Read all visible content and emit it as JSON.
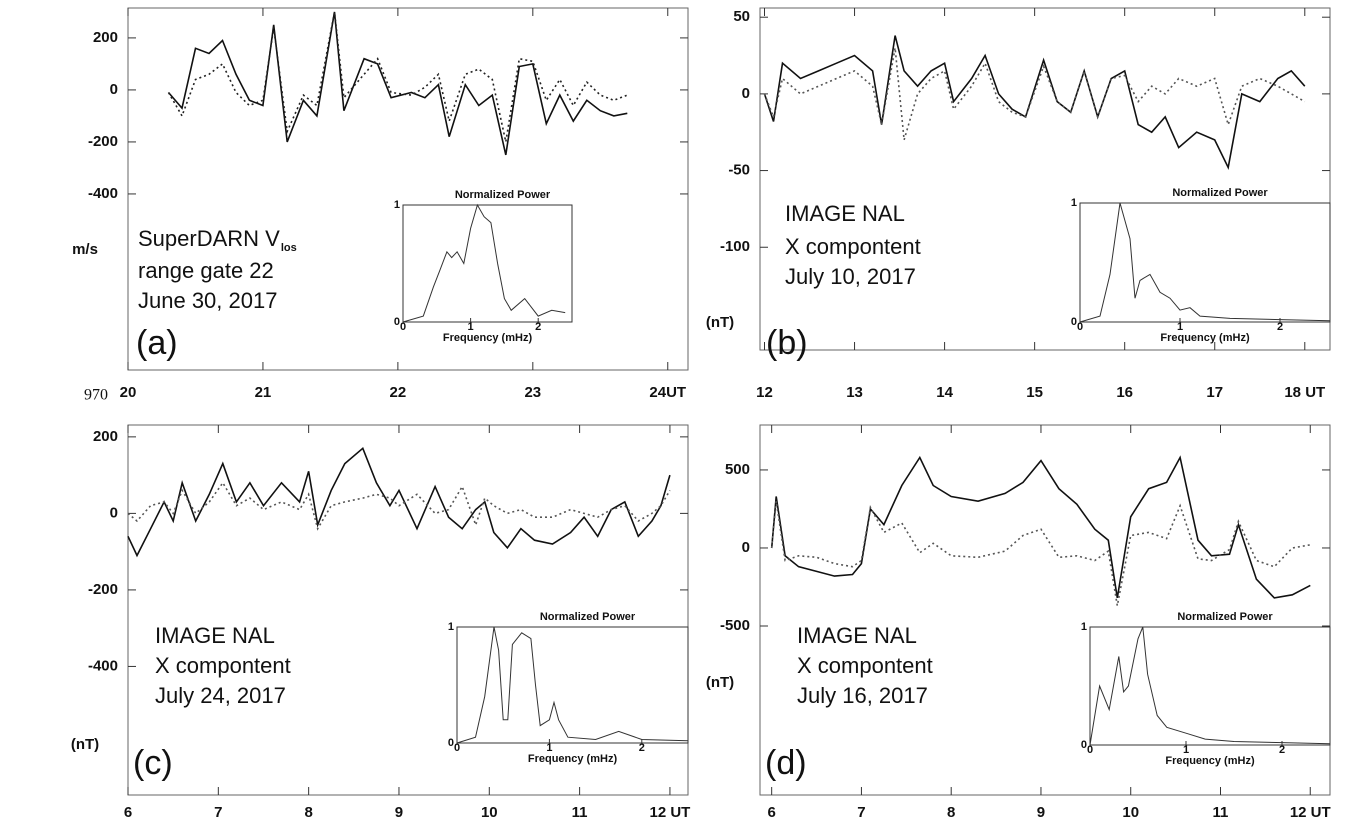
{
  "page_number": "970",
  "chart_data": [
    {
      "type": "line",
      "annotation_lines": [
        "SuperDARN V",
        "range gate 22",
        "June 30, 2017"
      ],
      "annotation_subscript": "los",
      "y_unit": "m/s",
      "panel_label": "(a)",
      "xlim": [
        20,
        24.15
      ],
      "xticks": [
        20,
        21,
        22,
        23,
        {
          "value": 24,
          "label": "24UT"
        }
      ],
      "ylim": [
        -1077,
        315
      ],
      "yticks": [
        200,
        0,
        -200,
        -400
      ],
      "x": [
        20.3,
        20.4,
        20.5,
        20.6,
        20.7,
        20.8,
        20.9,
        21.0,
        21.08,
        21.18,
        21.3,
        21.4,
        21.53,
        21.6,
        21.75,
        21.85,
        21.95,
        22.1,
        22.2,
        22.3,
        22.38,
        22.5,
        22.6,
        22.7,
        22.8,
        22.9,
        23.0,
        23.1,
        23.2,
        23.3,
        23.4,
        23.5,
        23.6,
        23.7
      ],
      "series": [
        {
          "color": "#111111",
          "dash": "solid",
          "values": [
            -10,
            -70,
            160,
            140,
            190,
            60,
            -40,
            -60,
            250,
            -200,
            -40,
            -100,
            300,
            -80,
            120,
            100,
            -30,
            -10,
            -30,
            20,
            -180,
            20,
            -60,
            -20,
            -250,
            90,
            100,
            -130,
            -20,
            -120,
            -40,
            -80,
            -100,
            -90
          ]
        },
        {
          "color": "#222222",
          "dash": "dotted",
          "values": [
            -10,
            -100,
            40,
            60,
            100,
            -10,
            -60,
            -40,
            240,
            -160,
            -20,
            -60,
            300,
            -30,
            60,
            120,
            -10,
            -20,
            10,
            60,
            -120,
            60,
            80,
            40,
            -200,
            120,
            110,
            -40,
            40,
            -60,
            30,
            -20,
            -40,
            -20
          ]
        }
      ],
      "inset": {
        "type": "line",
        "title": "Normalized Power",
        "xlabel": "Frequency (mHz)",
        "xlim": [
          0,
          2.5
        ],
        "xticks": [
          0,
          1,
          2
        ],
        "ylim": [
          0,
          1
        ],
        "yticks": [
          0,
          1
        ],
        "color": "#333333",
        "x": [
          0,
          0.3,
          0.45,
          0.55,
          0.65,
          0.72,
          0.8,
          0.9,
          1.0,
          1.1,
          1.2,
          1.3,
          1.4,
          1.5,
          1.6,
          1.8,
          2.0,
          2.2,
          2.4
        ],
        "values": [
          0,
          0.05,
          0.3,
          0.45,
          0.6,
          0.55,
          0.6,
          0.5,
          0.8,
          1.0,
          0.9,
          0.85,
          0.5,
          0.2,
          0.1,
          0.2,
          0.05,
          0.1,
          0.08
        ]
      }
    },
    {
      "type": "line",
      "annotation_lines": [
        "IMAGE NAL",
        "X compontent",
        "July 10, 2017"
      ],
      "y_unit": "(nT)",
      "panel_label": "(b)",
      "xlim": [
        11.95,
        18.28
      ],
      "xticks": [
        12,
        13,
        14,
        15,
        16,
        17,
        {
          "value": 18,
          "label": "18 UT"
        }
      ],
      "ylim": [
        -167,
        56
      ],
      "yticks": [
        50,
        0,
        -50,
        -100
      ],
      "x": [
        12.0,
        12.1,
        12.2,
        12.4,
        12.6,
        12.8,
        13.0,
        13.2,
        13.3,
        13.45,
        13.55,
        13.7,
        13.85,
        14.0,
        14.1,
        14.3,
        14.45,
        14.6,
        14.75,
        14.9,
        15.1,
        15.25,
        15.4,
        15.55,
        15.7,
        15.85,
        16.0,
        16.15,
        16.3,
        16.45,
        16.6,
        16.8,
        17.0,
        17.15,
        17.3,
        17.5,
        17.7,
        17.85,
        18.0
      ],
      "series": [
        {
          "color": "#111111",
          "dash": "solid",
          "values": [
            0,
            -18,
            20,
            10,
            15,
            20,
            25,
            15,
            -20,
            38,
            15,
            5,
            15,
            20,
            -5,
            10,
            25,
            0,
            -10,
            -15,
            22,
            -5,
            -12,
            15,
            -15,
            10,
            15,
            -20,
            -25,
            -15,
            -35,
            -25,
            -30,
            -48,
            0,
            -5,
            10,
            15,
            5
          ]
        },
        {
          "color": "#555555",
          "dash": "dotted",
          "values": [
            0,
            -15,
            10,
            0,
            5,
            10,
            15,
            5,
            -20,
            30,
            -30,
            0,
            10,
            15,
            -10,
            5,
            20,
            -5,
            -12,
            -15,
            18,
            -5,
            -12,
            15,
            -15,
            10,
            12,
            -5,
            5,
            0,
            10,
            5,
            10,
            -20,
            5,
            10,
            5,
            0,
            -5
          ]
        }
      ],
      "inset": {
        "type": "line",
        "title": "Normalized Power",
        "xlabel": "Frequency (mHz)",
        "xlim": [
          0,
          2.5
        ],
        "xticks": [
          0,
          1,
          2
        ],
        "ylim": [
          0,
          1
        ],
        "yticks": [
          0,
          1
        ],
        "color": "#333333",
        "x": [
          0,
          0.2,
          0.3,
          0.4,
          0.5,
          0.55,
          0.6,
          0.7,
          0.8,
          0.9,
          1.0,
          1.1,
          1.2,
          1.5,
          2.0,
          2.5
        ],
        "values": [
          0,
          0.05,
          0.4,
          1.0,
          0.7,
          0.2,
          0.35,
          0.4,
          0.25,
          0.2,
          0.1,
          0.12,
          0.05,
          0.03,
          0.02,
          0.01
        ]
      }
    },
    {
      "type": "line",
      "annotation_lines": [
        "IMAGE NAL",
        "X compontent",
        "July 24, 2017"
      ],
      "y_unit": "(nT)",
      "panel_label": "(c)",
      "xlim": [
        6,
        12.2
      ],
      "xticks": [
        6,
        7,
        8,
        9,
        10,
        11,
        {
          "value": 12,
          "label": "12 UT"
        }
      ],
      "ylim": [
        -736,
        231
      ],
      "yticks": [
        200,
        0,
        -200,
        -400
      ],
      "x": [
        6.0,
        6.1,
        6.25,
        6.4,
        6.5,
        6.6,
        6.75,
        6.9,
        7.05,
        7.2,
        7.35,
        7.5,
        7.7,
        7.9,
        8.0,
        8.1,
        8.25,
        8.4,
        8.6,
        8.75,
        8.9,
        9.0,
        9.2,
        9.4,
        9.55,
        9.7,
        9.85,
        9.95,
        10.05,
        10.2,
        10.35,
        10.5,
        10.7,
        10.9,
        11.05,
        11.2,
        11.35,
        11.5,
        11.65,
        11.8,
        11.9,
        12.0
      ],
      "series": [
        {
          "color": "#111111",
          "dash": "solid",
          "values": [
            -60,
            -110,
            -40,
            30,
            -20,
            80,
            -20,
            50,
            130,
            30,
            80,
            20,
            80,
            30,
            110,
            -30,
            60,
            130,
            170,
            80,
            20,
            60,
            -40,
            70,
            -10,
            -40,
            10,
            30,
            -50,
            -90,
            -40,
            -70,
            -80,
            -50,
            -10,
            -60,
            10,
            30,
            -60,
            -20,
            20,
            100
          ]
        },
        {
          "color": "#555555",
          "dash": "dotted",
          "values": [
            0,
            -20,
            20,
            30,
            0,
            60,
            0,
            30,
            80,
            20,
            40,
            10,
            30,
            10,
            50,
            -40,
            20,
            30,
            40,
            50,
            40,
            20,
            50,
            0,
            10,
            70,
            -30,
            40,
            20,
            0,
            10,
            -10,
            -10,
            10,
            0,
            -10,
            10,
            20,
            -20,
            0,
            20,
            60
          ]
        }
      ],
      "inset": {
        "type": "line",
        "title": "Normalized Power",
        "xlabel": "Frequency (mHz)",
        "xlim": [
          0,
          2.5
        ],
        "xticks": [
          0,
          1,
          2
        ],
        "ylim": [
          0,
          1
        ],
        "yticks": [
          0,
          1
        ],
        "color": "#333333",
        "x": [
          0,
          0.2,
          0.3,
          0.4,
          0.45,
          0.5,
          0.55,
          0.6,
          0.7,
          0.8,
          0.85,
          0.9,
          1.0,
          1.05,
          1.1,
          1.2,
          1.5,
          1.75,
          2.0,
          2.5
        ],
        "values": [
          0,
          0.05,
          0.4,
          1.0,
          0.8,
          0.2,
          0.2,
          0.85,
          0.95,
          0.9,
          0.5,
          0.15,
          0.2,
          0.35,
          0.2,
          0.05,
          0.03,
          0.1,
          0.03,
          0.02
        ]
      }
    },
    {
      "type": "line",
      "annotation_lines": [
        "IMAGE NAL",
        "X compontent",
        "July 16, 2017"
      ],
      "y_unit": "(nT)",
      "panel_label": "(d)",
      "xlim": [
        5.87,
        12.22
      ],
      "xticks": [
        6,
        7,
        8,
        9,
        10,
        11,
        {
          "value": 12,
          "label": "12 UT"
        }
      ],
      "ylim": [
        -1583,
        788
      ],
      "yticks": [
        500,
        0,
        -500
      ],
      "x": [
        6.0,
        6.05,
        6.15,
        6.3,
        6.5,
        6.7,
        6.9,
        7.0,
        7.1,
        7.25,
        7.45,
        7.65,
        7.8,
        8.0,
        8.3,
        8.6,
        8.8,
        9.0,
        9.2,
        9.4,
        9.6,
        9.75,
        9.85,
        10.0,
        10.2,
        10.4,
        10.55,
        10.75,
        10.9,
        11.1,
        11.2,
        11.4,
        11.6,
        11.8,
        12.0
      ],
      "series": [
        {
          "color": "#111111",
          "dash": "solid",
          "values": [
            0,
            330,
            -50,
            -120,
            -150,
            -180,
            -170,
            -100,
            250,
            150,
            400,
            580,
            400,
            330,
            300,
            350,
            420,
            560,
            380,
            280,
            120,
            50,
            -320,
            200,
            380,
            420,
            580,
            50,
            -50,
            -40,
            150,
            -200,
            -320,
            -300,
            -240
          ]
        },
        {
          "color": "#555555",
          "dash": "dotted",
          "values": [
            0,
            300,
            -80,
            -50,
            -60,
            -100,
            -120,
            -80,
            260,
            100,
            160,
            -30,
            30,
            -50,
            -60,
            -20,
            80,
            120,
            -60,
            -50,
            -80,
            -20,
            -370,
            80,
            100,
            60,
            270,
            -70,
            -80,
            -10,
            170,
            -80,
            -120,
            0,
            20
          ]
        }
      ],
      "inset": {
        "type": "line",
        "title": "Normalized Power",
        "xlabel": "Frequency (mHz)",
        "xlim": [
          0,
          2.5
        ],
        "xticks": [
          0,
          1,
          2
        ],
        "ylim": [
          0,
          1
        ],
        "yticks": [
          0,
          1
        ],
        "color": "#333333",
        "x": [
          0,
          0.1,
          0.2,
          0.3,
          0.35,
          0.4,
          0.5,
          0.55,
          0.6,
          0.7,
          0.8,
          1.0,
          1.2,
          1.5,
          2.0,
          2.5
        ],
        "values": [
          0,
          0.5,
          0.3,
          0.75,
          0.45,
          0.5,
          0.9,
          1.0,
          0.6,
          0.25,
          0.15,
          0.1,
          0.05,
          0.03,
          0.02,
          0.01
        ]
      }
    }
  ]
}
